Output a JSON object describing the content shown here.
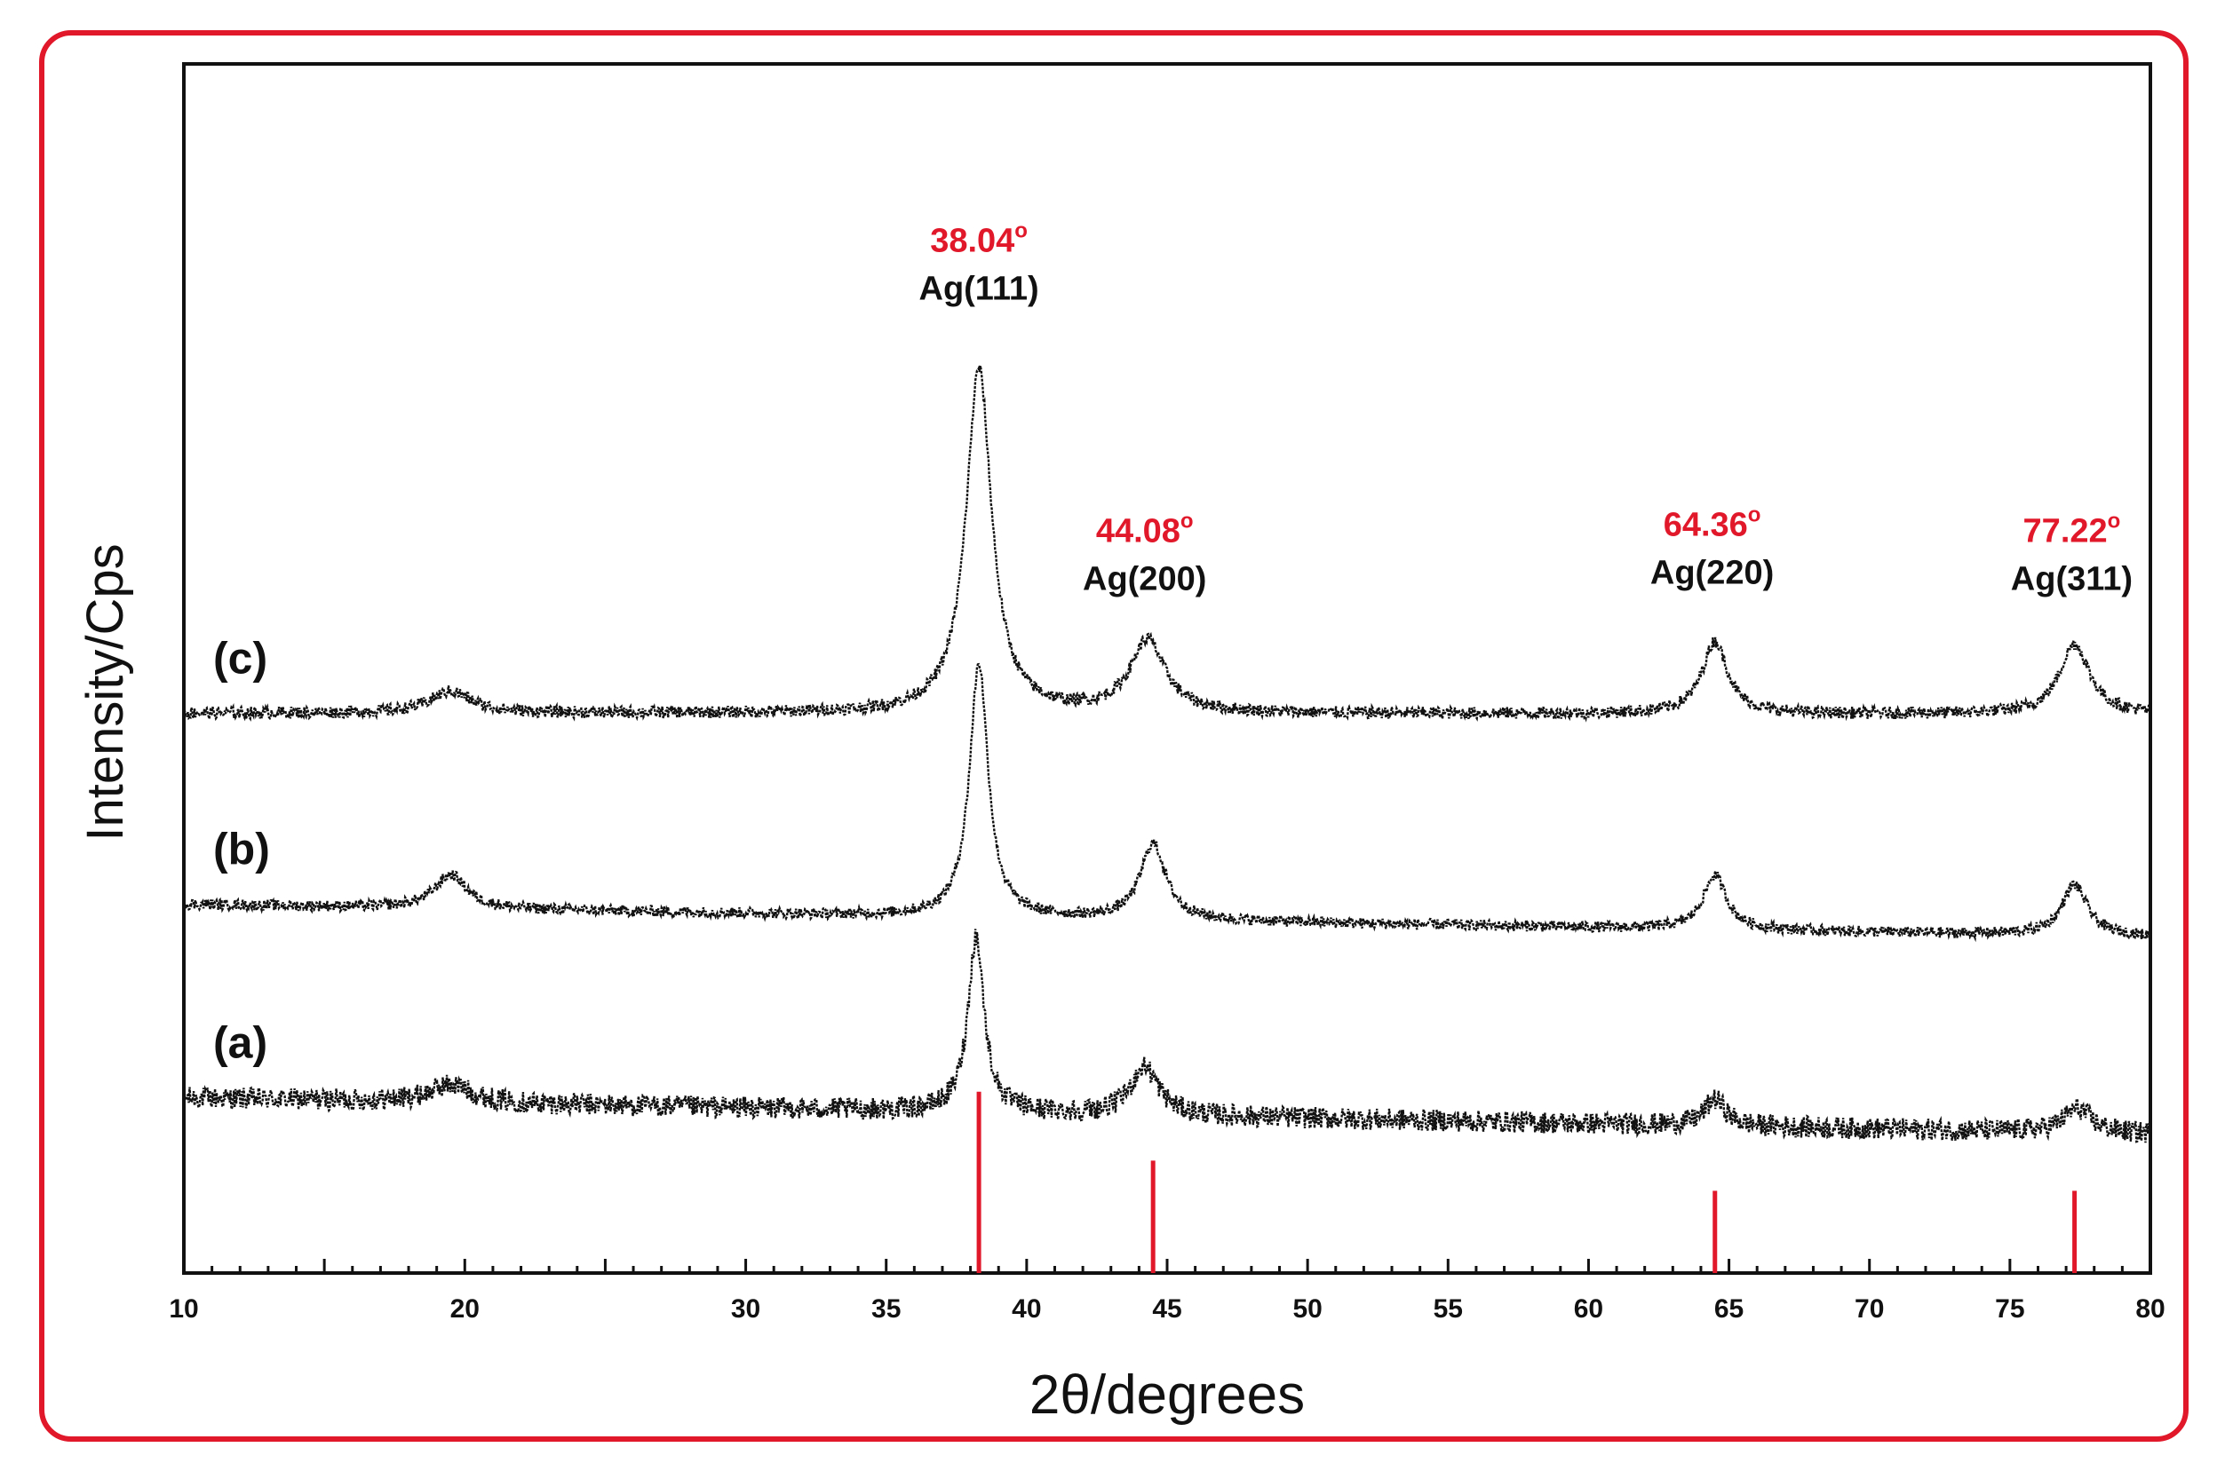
{
  "chart_data": {
    "type": "line",
    "xlabel": "2θ/degrees",
    "ylabel": "Intensity/Cps",
    "xlim": [
      10,
      80
    ],
    "xticks": [
      10,
      20,
      30,
      35,
      40,
      45,
      50,
      55,
      60,
      65,
      70,
      75,
      80
    ],
    "ylim": [
      0,
      100
    ],
    "grid": false,
    "legend": "none",
    "colors": {
      "trace": "#111111",
      "reference": "#e0182a",
      "frame": "#e0182a",
      "angle_label": "#e0182a"
    },
    "series": [
      {
        "name": "(a)",
        "baseline": 14.5,
        "end_baseline": 11.5,
        "noise": 0.9,
        "peaks": [
          {
            "x": 19.5,
            "height": 1.5,
            "width": 0.9
          },
          {
            "x": 38.2,
            "height": 14.5,
            "width": 0.35
          },
          {
            "x": 44.2,
            "height": 4.0,
            "width": 0.6
          },
          {
            "x": 64.5,
            "height": 2.2,
            "width": 0.45
          },
          {
            "x": 77.4,
            "height": 2.0,
            "width": 0.6
          }
        ]
      },
      {
        "name": "(b)",
        "baseline": 30.5,
        "end_baseline": 27.8,
        "noise": 0.45,
        "peaks": [
          {
            "x": 19.5,
            "height": 2.8,
            "width": 0.7
          },
          {
            "x": 38.3,
            "height": 21.0,
            "width": 0.4
          },
          {
            "x": 44.5,
            "height": 6.3,
            "width": 0.55
          },
          {
            "x": 64.5,
            "height": 4.5,
            "width": 0.5
          },
          {
            "x": 77.3,
            "height": 4.2,
            "width": 0.55
          }
        ]
      },
      {
        "name": "(c)",
        "baseline": 46.3,
        "end_baseline": 46.2,
        "noise": 0.5,
        "peaks": [
          {
            "x": 19.5,
            "height": 1.8,
            "width": 0.9
          },
          {
            "x": 38.3,
            "height": 28.5,
            "width": 0.55
          },
          {
            "x": 44.3,
            "height": 6.0,
            "width": 0.75
          },
          {
            "x": 64.5,
            "height": 6.0,
            "width": 0.55
          },
          {
            "x": 77.3,
            "height": 5.8,
            "width": 0.65
          }
        ]
      }
    ],
    "reference_lines": [
      {
        "x": 38.3,
        "height": 15.0
      },
      {
        "x": 44.5,
        "height": 9.3
      },
      {
        "x": 64.5,
        "height": 6.8
      },
      {
        "x": 77.3,
        "height": 6.8
      }
    ],
    "annotations": [
      {
        "angle": "38.04",
        "plane": "Ag(111)",
        "x": 38.3,
        "y": 80.5
      },
      {
        "angle": "44.08",
        "plane": "Ag(200)",
        "x": 44.2,
        "y": 56.5
      },
      {
        "angle": "64.36",
        "plane": "Ag(220)",
        "x": 64.4,
        "y": 57.0
      },
      {
        "angle": "77.22",
        "plane": "Ag(311)",
        "x": 77.2,
        "y": 56.5
      }
    ],
    "degree_symbol": "o"
  }
}
